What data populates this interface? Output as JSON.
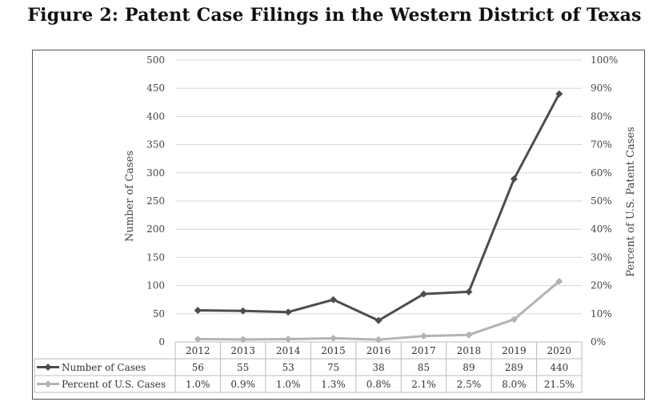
{
  "title": "Figure 2: Patent Case Filings in the Western District of Texas",
  "chart_data": {
    "type": "line",
    "categories": [
      "2012",
      "2013",
      "2014",
      "2015",
      "2016",
      "2017",
      "2018",
      "2019",
      "2020"
    ],
    "series": [
      {
        "name": "Number of Cases",
        "axis": "left",
        "values": [
          56,
          55,
          53,
          75,
          38,
          85,
          89,
          289,
          440
        ],
        "table_labels": [
          "56",
          "55",
          "53",
          "75",
          "38",
          "85",
          "89",
          "289",
          "440"
        ],
        "color": "#4d4d4d"
      },
      {
        "name": "Percent of U.S. Cases",
        "axis": "right",
        "values": [
          1.0,
          0.9,
          1.0,
          1.3,
          0.8,
          2.1,
          2.5,
          8.0,
          21.5
        ],
        "table_labels": [
          "1.0%",
          "0.9%",
          "1.0%",
          "1.3%",
          "0.8%",
          "2.1%",
          "2.5%",
          "8.0%",
          "21.5%"
        ],
        "color": "#b3b3b3"
      }
    ],
    "ylabel": "Number of Cases",
    "y2label": "Percent of U.S. Patent Cases",
    "ylim": [
      0,
      500
    ],
    "y2lim": [
      0,
      100
    ],
    "yticks": [
      "0",
      "50",
      "100",
      "150",
      "200",
      "250",
      "300",
      "350",
      "400",
      "450",
      "500"
    ],
    "y2ticks": [
      "0%",
      "10%",
      "20%",
      "30%",
      "40%",
      "50%",
      "60%",
      "70%",
      "80%",
      "90%",
      "100%"
    ],
    "grid": true,
    "legend": "data table below plot"
  }
}
